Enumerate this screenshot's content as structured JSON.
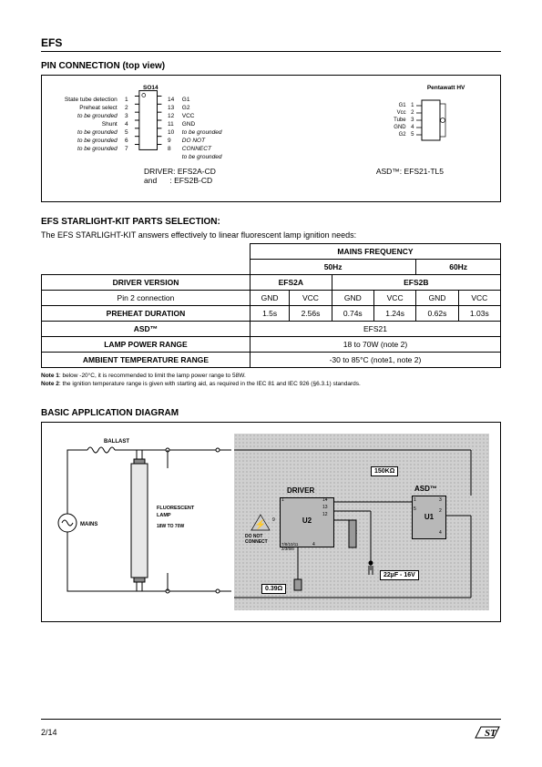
{
  "header": {
    "product": "EFS"
  },
  "pin_connection": {
    "title": "PIN CONNECTION (top view)",
    "so14_label": "SO14",
    "left_pins": [
      {
        "n": 1,
        "label": "State tube detection",
        "italic": false
      },
      {
        "n": 2,
        "label": "Preheat select",
        "italic": false
      },
      {
        "n": 3,
        "label": "to be grounded",
        "italic": true
      },
      {
        "n": 4,
        "label": "Shunt",
        "italic": false
      },
      {
        "n": 5,
        "label": "to be grounded",
        "italic": true
      },
      {
        "n": 6,
        "label": "to be grounded",
        "italic": true
      },
      {
        "n": 7,
        "label": "to be grounded",
        "italic": true
      }
    ],
    "right_pins": [
      {
        "n": 14,
        "label": "G1",
        "italic": false
      },
      {
        "n": 13,
        "label": "G2",
        "italic": false
      },
      {
        "n": 12,
        "label": "VCC",
        "italic": false
      },
      {
        "n": 11,
        "label": "GND",
        "italic": false
      },
      {
        "n": 10,
        "label": "to be grounded",
        "italic": true
      },
      {
        "n": 9,
        "label": "DO NOT CONNECT",
        "italic": true
      },
      {
        "n": 8,
        "label": "to be grounded",
        "italic": true
      }
    ],
    "pentawatt_label": "Pentawatt HV",
    "pentawatt_pins": [
      {
        "n": 1,
        "label": "G1"
      },
      {
        "n": 2,
        "label": "Vcc"
      },
      {
        "n": 3,
        "label": "Tube"
      },
      {
        "n": 4,
        "label": "GND"
      },
      {
        "n": 5,
        "label": "G2"
      }
    ],
    "driver_line1": "DRIVER: EFS2A-CD",
    "driver_line2": "and      : EFS2B-CD",
    "asd_line": "ASD™:  EFS21-TL5"
  },
  "parts_section": {
    "title": "EFS STARLIGHT-KIT PARTS SELECTION:",
    "subtitle": "The EFS STARLIGHT-KIT answers effectively to linear fluorescent lamp ignition needs:",
    "table": {
      "mains_freq": "MAINS FREQUENCY",
      "hz50": "50Hz",
      "hz60": "60Hz",
      "driver_version": "DRIVER VERSION",
      "efs2a": "EFS2A",
      "efs2b": "EFS2B",
      "pin2": "Pin 2 connection",
      "gnd": "GND",
      "vcc": "VCC",
      "preheat": "PREHEAT DURATION",
      "preheat_vals": [
        "1.5s",
        "2.56s",
        "0.74s",
        "1.24s",
        "0.62s",
        "1.03s"
      ],
      "asd": "ASD™",
      "asd_val": "EFS21",
      "lamp_power": "LAMP POWER RANGE",
      "lamp_power_val": "18 to 70W (note 2)",
      "ambient": "AMBIENT TEMPERATURE RANGE",
      "ambient_val": "-30 to 85°C (note1, note 2)"
    },
    "note1": "Note 1: below -20°C, it is recommended to limit the lamp power range to 58W.",
    "note2": "Note 2: the ignition temperature range is given with starting aid, as required in the IEC 81 and  IEC 926 (§6.3.1) standards."
  },
  "app_diagram": {
    "title": "BASIC APPLICATION DIAGRAM",
    "ballast": "BALLAST",
    "mains": "MAINS",
    "lamp1": "FLUORESCENT",
    "lamp2": "LAMP",
    "lamp3": "18W TO 70W",
    "driver": "DRIVER",
    "asd": "ASD™",
    "u1": "U1",
    "u2": "U2",
    "dnc": "DO NOT CONNECT",
    "r": "R",
    "r150k": "150KΩ",
    "c22": "22µF - 16V",
    "r039": "0.39Ω",
    "pins_left": "7/8/10/11 2/3/5/6",
    "pin4": "4",
    "pin1": "1",
    "pin9": "9",
    "pin12": "12",
    "pin13": "13",
    "pin14": "14",
    "asd_1": "1",
    "asd_2": "2",
    "asd_3": "3",
    "asd_4": "4",
    "asd_5": "5"
  },
  "footer": {
    "page": "2/14"
  }
}
